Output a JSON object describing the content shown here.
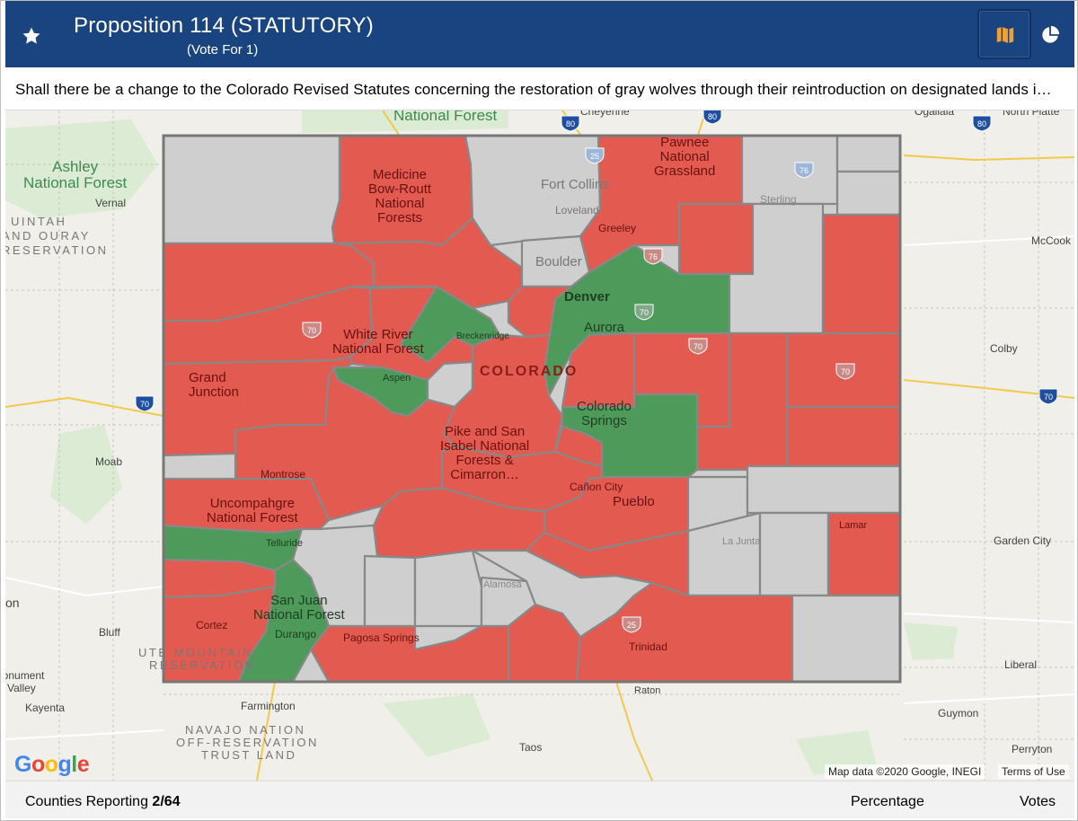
{
  "header": {
    "title": "Proposition 114 (STATUTORY)",
    "subtitle": "(Vote For 1)",
    "buttons": {
      "favorite_icon": "star-icon",
      "map_icon": "map-icon",
      "chart_icon": "pie-chart-icon"
    },
    "colors": {
      "background": "#1a4480",
      "map_icon": "#f0a030"
    }
  },
  "question": "Shall there be a change to the Colorado Revised Statutes concerning the restoration of gray wolves through their reintroduction on designated lands i…",
  "map": {
    "legend_colors": {
      "yes": "#4e9a5a",
      "no": "#e35b50",
      "not_reported": "#cfcfcf"
    },
    "labels": {
      "ashley": "Ashley\nNational Forest",
      "national_forest_top": "National Forest",
      "uintah": "UINTAH",
      "ouray": "AND OURAY",
      "reservation": "RESERVATION",
      "ute_mountain": "UTE MOUNTAIN",
      "ute_reservation": "RESERVATION",
      "navajo1": "NAVAJO NATION",
      "navajo2": "OFF-RESERVATION",
      "navajo3": "TRUST LAND",
      "vernal": "Vernal",
      "moab": "Moab",
      "bluff": "Bluff",
      "monument": "lonument",
      "valley": "Valley",
      "kayenta": "Kayenta",
      "on": "on",
      "farmington": "Farmington",
      "taos": "Taos",
      "raton": "Raton",
      "cheyenne": "Cheyenne",
      "ogallala": "Ogallala",
      "north_platte": "North Platte",
      "mccook": "McCook",
      "colby": "Colby",
      "garden_city": "Garden City",
      "liberal": "Liberal",
      "guymon": "Guymon",
      "perryton": "Perryton",
      "medicine_bow": "Medicine\nBow-Routt\nNational\nForests",
      "fort_collins": "Fort Collins",
      "loveland": "Loveland",
      "greeley": "Greeley",
      "pawnee": "Pawnee\nNational\nGrassland",
      "sterling": "Sterling",
      "boulder": "Boulder",
      "denver": "Denver",
      "aurora": "Aurora",
      "white_river": "White River\nNational Forest",
      "breckenridge": "Breckenridge",
      "aspen": "Aspen",
      "colorado": "COLORADO",
      "grand_junction": "Grand\nJunction",
      "colorado_springs": "Colorado\nSprings",
      "pike": "Pike and San\nIsabel National\nForests &\nCimarron…",
      "canon_city": "Cañon City",
      "pueblo": "Pueblo",
      "montrose": "Montrose",
      "uncompahgre": "Uncompahgre\nNational Forest",
      "telluride": "Telluride",
      "san_juan": "San Juan\nNational Forest",
      "cortez": "Cortez",
      "durango": "Durango",
      "pagosa": "Pagosa Springs",
      "alamosa": "Alamosa",
      "trinidad": "Trinidad",
      "la_junta": "La Junta",
      "lamar": "Lamar"
    },
    "shields": {
      "i80a": "80",
      "i80b": "80",
      "i80c": "80",
      "i25a": "25",
      "i25b": "25",
      "i76a": "76",
      "i76b": "76",
      "i70a": "70",
      "i70b": "70",
      "i70c": "70",
      "i70d": "70",
      "i70e": "70",
      "i70f": "70"
    },
    "google": "Google",
    "attribution": "Map data ©2020 Google, INEGI",
    "terms": "Terms of Use"
  },
  "footer": {
    "reporting_label": "Counties Reporting",
    "reporting_value": "2/64",
    "percentage_label": "Percentage",
    "votes_label": "Votes"
  }
}
